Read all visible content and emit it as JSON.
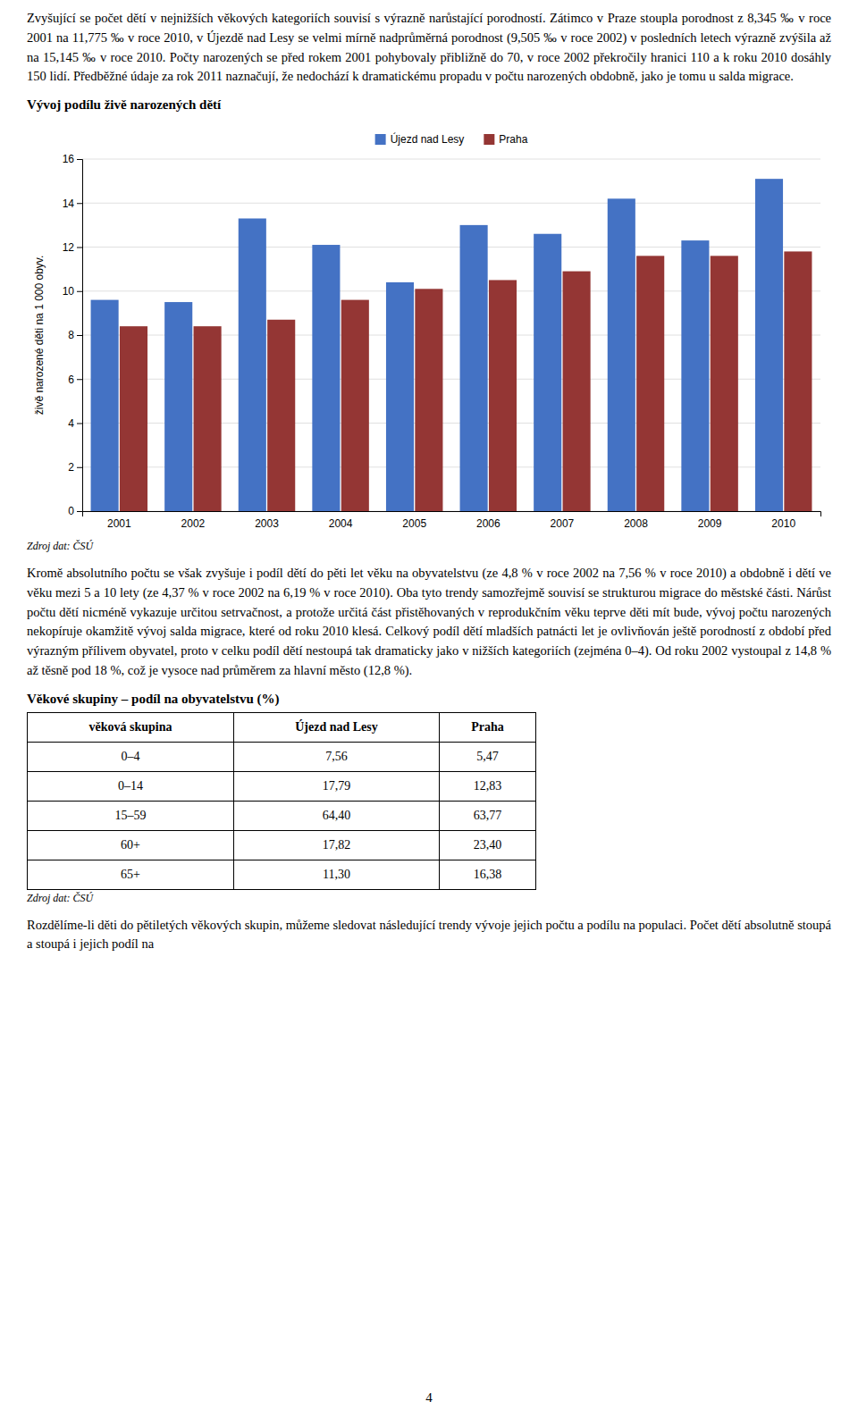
{
  "page_text": "Zvyšující se počet dětí v nejnižších věkových kategoriích souvisí s výrazně narůstající porodností. Zátimco v Praze stoupla porodnost z 8,345 ‰ v roce 2001 na 11,775 ‰ v roce 2010, v Újezdě nad Lesy se velmi mírně nadprůměrná porodnost (9,505 ‰ v roce 2002) v posledních letech výrazně zvýšila až na 15,145 ‰ v roce 2010. Počty narozených se před rokem 2001 pohybovaly přibližně do 70, v roce 2002 překročily hranici 110 a k roku 2010 dosáhly 150 lidí. Předběžné údaje za rok 2011 naznačují, že nedochází k dramatickému propadu v počtu narozených obdobně, jako je tomu u salda migrace.",
  "chart_data": {
    "type": "bar",
    "title": "Vývoj podílu živě narozených dětí",
    "categories": [
      "2001",
      "2002",
      "2003",
      "2004",
      "2005",
      "2006",
      "2007",
      "2008",
      "2009",
      "2010"
    ],
    "series": [
      {
        "name": "Újezd nad Lesy",
        "color": "#4472C4",
        "values": [
          9.6,
          9.5,
          13.3,
          12.1,
          10.4,
          13.0,
          12.6,
          14.2,
          12.3,
          15.1
        ]
      },
      {
        "name": "Praha",
        "color": "#943634",
        "values": [
          8.4,
          8.4,
          8.7,
          9.6,
          10.1,
          10.5,
          10.9,
          11.6,
          11.6,
          11.8
        ]
      }
    ],
    "ylabel": "živě narozené děti na 1 000 obyv.",
    "ylim": [
      0,
      16
    ],
    "yticks": [
      0,
      2,
      4,
      6,
      8,
      10,
      12,
      14,
      16
    ],
    "grid": true,
    "legend": "top"
  },
  "chart_source": "Zdroj dat: ČSÚ",
  "middle_text": "Kromě absolutního počtu se však zvyšuje i podíl dětí do pěti let věku na obyvatelstvu (ze 4,8 % v roce 2002 na 7,56 % v roce 2010) a obdobně i dětí ve věku mezi 5 a 10 lety (ze 4,37 % v roce 2002 na 6,19 % v roce 2010). Oba tyto trendy samozřejmě souvisí se strukturou migrace do městské části. Nárůst počtu dětí nicméně vykazuje určitou setrvačnost, a protože určitá část přistěhovaných v reprodukčním věku teprve děti mít bude, vývoj počtu narozených nekopíruje okamžitě vývoj salda migrace, které od roku 2010 klesá. Celkový podíl dětí mladších patnácti let je ovlivňován ještě porodností z období před výrazným přílivem obyvatel, proto v celku podíl dětí nestoupá tak dramaticky jako v nižších kategoriích (zejména 0–4). Od roku 2002 vystoupal z 14,8 % až těsně pod 18 %, což je vysoce nad průměrem za hlavní město (12,8 %).",
  "table": {
    "title": "Věkové skupiny – podíl na obyvatelstvu (%)",
    "headers": [
      "věková skupina",
      "Újezd nad Lesy",
      "Praha"
    ],
    "rows": [
      [
        "0–4",
        "7,56",
        "5,47"
      ],
      [
        "0–14",
        "17,79",
        "12,83"
      ],
      [
        "15–59",
        "64,40",
        "63,77"
      ],
      [
        "60+",
        "17,82",
        "23,40"
      ],
      [
        "65+",
        "11,30",
        "16,38"
      ]
    ],
    "source": "Zdroj dat: ČSÚ"
  },
  "bottom_text": "Rozdělíme-li děti do pětiletých věkových skupin, můžeme sledovat následující trendy vývoje jejich počtu a podílu na populaci. Počet dětí absolutně stoupá a stoupá i jejich podíl na",
  "page_number": "4"
}
